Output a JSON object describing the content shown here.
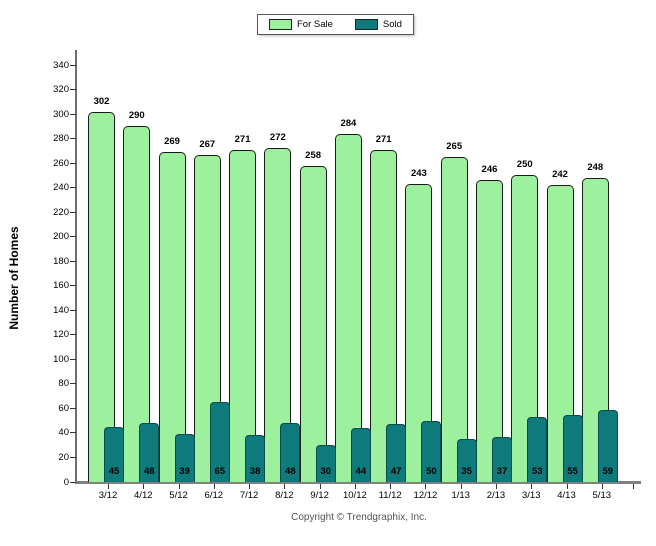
{
  "chart_data": {
    "type": "bar",
    "title": "",
    "categories": [
      "3/12",
      "4/12",
      "5/12",
      "6/12",
      "7/12",
      "8/12",
      "9/12",
      "10/12",
      "11/12",
      "12/12",
      "1/13",
      "2/13",
      "3/13",
      "4/13",
      "5/13"
    ],
    "series": [
      {
        "name": "For Sale",
        "color": "#9DF09D",
        "border_color": "#1a1a1a",
        "values": [
          302,
          290,
          269,
          267,
          271,
          272,
          258,
          284,
          271,
          243,
          265,
          246,
          250,
          242,
          248
        ]
      },
      {
        "name": "Sold",
        "color": "#0F7A7C",
        "border_color": "#0a4b4d",
        "values": [
          45,
          48,
          39,
          65,
          38,
          48,
          30,
          44,
          47,
          50,
          35,
          37,
          53,
          55,
          59
        ]
      }
    ],
    "xlabel": "",
    "ylabel": "Number of Homes",
    "ylim": [
      0,
      340
    ],
    "ytick_step": 20,
    "grid": false,
    "legend_position": "top-center",
    "value_labels": "for-sale above bars, sold at bar base"
  },
  "footer": {
    "copyright": "Copyright © Trendgraphix, Inc."
  },
  "colors": {
    "background": "#ffffff",
    "x_axis_line": "#808080",
    "y_axis_line": "#6e6e6e",
    "tick_mark": "#333333",
    "label_text": "#000000",
    "copyright_text": "#555555",
    "legend_border": "#555555"
  }
}
